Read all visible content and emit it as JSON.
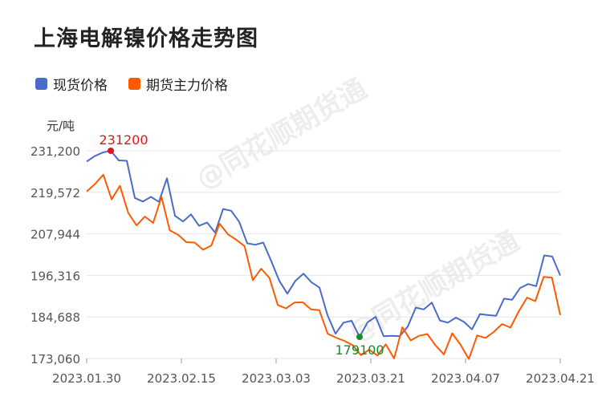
{
  "page_title": "上海电解镍价格走势图",
  "unit_label": "元/吨",
  "watermark": "@同花顺期货通",
  "colors": {
    "spot": "#4A6CC8",
    "futures": "#FF5A00",
    "max_marker": "#E0151F",
    "min_marker": "#1A8A2E",
    "grid": "#E6E6E6"
  },
  "chart_data": {
    "type": "line",
    "title": "上海电解镍价格走势图",
    "ylabel": "元/吨",
    "ylim": [
      173060,
      231200
    ],
    "yticks": [
      "231,200",
      "219,572",
      "207,944",
      "196,316",
      "184,688",
      "173,060"
    ],
    "ytick_values": [
      231200,
      219572,
      207944,
      196316,
      184688,
      173060
    ],
    "xticks": [
      "2023.01.30",
      "2023.02.15",
      "2023.03.03",
      "2023.03.21",
      "2023.04.07",
      "2023.04.21"
    ],
    "xtick_indices": [
      0,
      13,
      26,
      39,
      52,
      65
    ],
    "grid": true,
    "legend_position": "top-left",
    "series": [
      {
        "name": "现货价格",
        "key": "spot",
        "values": [
          228200,
          229700,
          230700,
          231200,
          228500,
          228400,
          218000,
          217000,
          218300,
          216900,
          223500,
          213000,
          211400,
          213400,
          210200,
          211100,
          208300,
          214900,
          214400,
          211300,
          205300,
          204900,
          205500,
          200300,
          194800,
          191200,
          194800,
          196800,
          194400,
          192900,
          185200,
          180000,
          183100,
          183600,
          179100,
          183200,
          184700,
          179300,
          179400,
          179300,
          182000,
          187300,
          186800,
          188700,
          183700,
          183100,
          184500,
          183300,
          181200,
          185500,
          185200,
          185000,
          189800,
          189500,
          192800,
          193900,
          193300,
          201900,
          201600,
          196300
        ]
      },
      {
        "name": "期货主力价格",
        "key": "futures",
        "values": [
          219800,
          221900,
          224500,
          217600,
          221400,
          213800,
          210300,
          212800,
          211000,
          218300,
          208900,
          207700,
          205600,
          205500,
          203500,
          204700,
          210800,
          207800,
          206300,
          204500,
          195000,
          198200,
          195600,
          188000,
          187100,
          188700,
          188800,
          186800,
          186600,
          180000,
          178900,
          178000,
          176800,
          174000,
          175500,
          173900,
          177000,
          173060,
          181800,
          178100,
          179400,
          179900,
          176700,
          174200,
          180100,
          176900,
          172900,
          179500,
          178800,
          180500,
          182700,
          181700,
          186200,
          190100,
          189100,
          195900,
          195700,
          185200
        ]
      }
    ],
    "max_marker": {
      "series": "spot",
      "index": 3,
      "value": 231200,
      "label": "231200"
    },
    "min_marker": {
      "series": "spot",
      "index": 34,
      "value": 179100,
      "label": "179100"
    }
  }
}
